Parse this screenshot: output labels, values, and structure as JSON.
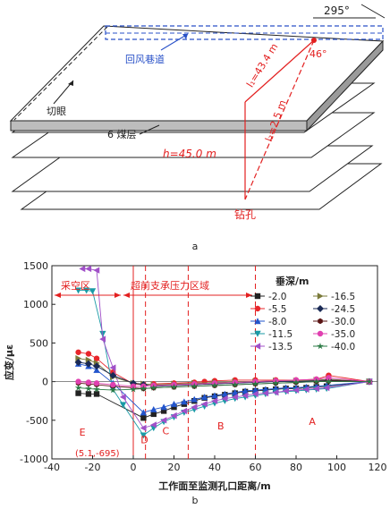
{
  "diagram": {
    "label": "a",
    "angle_top": "295°",
    "roadway_label": "回风巷道",
    "cut_label": "切眼",
    "seam_label": "6 煤层",
    "l1_label": "l₁=43.4 m",
    "l2_label": "l₂=2.5 m",
    "angle_46": "46°",
    "h_label": "h=45.0 m",
    "drill_label": "钻孔"
  },
  "chart_data": {
    "type": "scatter",
    "label": "b",
    "xlabel": "工作面至监测孔口距离/m",
    "ylabel": "应变/με",
    "xlim": [
      -40,
      120
    ],
    "ylim": [
      -1000,
      1500
    ],
    "xticks": [
      -40,
      -20,
      0,
      20,
      40,
      60,
      80,
      100,
      120
    ],
    "yticks": [
      -1000,
      -500,
      0,
      500,
      1000,
      1500
    ],
    "legend_title": "垂深/m",
    "zones": {
      "goaf": "采空区",
      "support": "超前支承压力区域",
      "letters": [
        "E",
        "D",
        "C",
        "B",
        "A"
      ]
    },
    "zone_boundaries": [
      0,
      6,
      27,
      60
    ],
    "annotation": "(5.1,-695)",
    "annotation_point": [
      5.1,
      -695
    ],
    "series": [
      {
        "name": "-2.0",
        "color": "#222222",
        "marker": "square",
        "x": [
          -27,
          -22,
          -18,
          5,
          10,
          15,
          20,
          25,
          30,
          35,
          40,
          45,
          50,
          55,
          60,
          65,
          70,
          75,
          80,
          85,
          90,
          95,
          116
        ],
        "y": [
          -150,
          -160,
          -160,
          -470,
          -420,
          -380,
          -330,
          -290,
          -250,
          -210,
          -190,
          -170,
          -150,
          -130,
          -120,
          -110,
          -100,
          -90,
          -90,
          -80,
          -70,
          -60,
          0
        ]
      },
      {
        "name": "-5.5",
        "color": "#e8262b",
        "marker": "circle",
        "x": [
          -27,
          -22,
          -18,
          -10,
          0,
          5,
          10,
          20,
          30,
          35,
          40,
          50,
          60,
          70,
          80,
          90,
          96,
          116
        ],
        "y": [
          380,
          360,
          300,
          120,
          -30,
          -40,
          -30,
          -20,
          -10,
          0,
          10,
          20,
          20,
          20,
          20,
          30,
          80,
          0
        ]
      },
      {
        "name": "-8.0",
        "color": "#2255cc",
        "marker": "triangle-up",
        "x": [
          -27,
          -22,
          -18,
          -10,
          5,
          10,
          15,
          20,
          25,
          30,
          35,
          40,
          45,
          50,
          55,
          60,
          65,
          70,
          75,
          80,
          85,
          90,
          95,
          116
        ],
        "y": [
          230,
          200,
          150,
          -20,
          -400,
          -360,
          -330,
          -290,
          -260,
          -230,
          -200,
          -180,
          -160,
          -140,
          -120,
          -110,
          -100,
          -90,
          -80,
          -80,
          -70,
          -60,
          -50,
          0
        ]
      },
      {
        "name": "-11.5",
        "color": "#1a9aa6",
        "marker": "triangle-down",
        "x": [
          -27,
          -23,
          -20,
          -15,
          -10,
          -5,
          5,
          10,
          15,
          20,
          25,
          30,
          35,
          40,
          45,
          50,
          55,
          60,
          65,
          70,
          75,
          80,
          85,
          90,
          95,
          116
        ],
        "y": [
          1180,
          1180,
          1170,
          620,
          -100,
          -300,
          -695,
          -600,
          -520,
          -460,
          -400,
          -360,
          -320,
          -280,
          -250,
          -220,
          -200,
          -180,
          -160,
          -140,
          -130,
          -120,
          -110,
          -100,
          -90,
          0
        ]
      },
      {
        "name": "-13.5",
        "color": "#a050c8",
        "marker": "triangle-left",
        "x": [
          -25,
          -22,
          -18,
          -15,
          -10,
          -5,
          5,
          10,
          15,
          20,
          25,
          30,
          35,
          40,
          45,
          50,
          55,
          60,
          65,
          70,
          75,
          80,
          85,
          90,
          95,
          116
        ],
        "y": [
          1460,
          1460,
          1440,
          550,
          180,
          -200,
          -600,
          -560,
          -500,
          -440,
          -380,
          -330,
          -290,
          -250,
          -220,
          -200,
          -180,
          -160,
          -150,
          -140,
          -120,
          -110,
          -100,
          -90,
          -80,
          0
        ]
      },
      {
        "name": "-16.5",
        "color": "#7a7a3a",
        "marker": "triangle-right",
        "x": [
          -27,
          -22,
          -18,
          -10,
          0,
          5,
          10,
          20,
          30,
          40,
          50,
          60,
          70,
          80,
          90,
          96,
          116
        ],
        "y": [
          300,
          280,
          240,
          60,
          -20,
          -30,
          -40,
          -30,
          -20,
          -10,
          0,
          0,
          10,
          10,
          20,
          30,
          0
        ]
      },
      {
        "name": "-24.5",
        "color": "#1a2a55",
        "marker": "diamond",
        "x": [
          -27,
          -22,
          -18,
          -10,
          0,
          5,
          10,
          20,
          30,
          40,
          50,
          60,
          70,
          80,
          90,
          96,
          116
        ],
        "y": [
          250,
          230,
          200,
          80,
          -20,
          -40,
          -60,
          -50,
          -40,
          -30,
          -20,
          -10,
          0,
          0,
          10,
          20,
          0
        ]
      },
      {
        "name": "-30.0",
        "color": "#5a1414",
        "marker": "hexagon",
        "x": [
          -27,
          -22,
          -18,
          -10,
          0,
          5,
          10,
          20,
          30,
          40,
          50,
          60,
          70,
          80,
          90,
          96,
          116
        ],
        "y": [
          -20,
          -30,
          -40,
          -60,
          -80,
          -90,
          -80,
          -70,
          -60,
          -50,
          -40,
          -30,
          -20,
          -10,
          0,
          10,
          0
        ]
      },
      {
        "name": "-35.0",
        "color": "#e040b0",
        "marker": "circle",
        "x": [
          -27,
          -22,
          -18,
          -10,
          0,
          5,
          10,
          20,
          30,
          40,
          50,
          60,
          70,
          80,
          90,
          96,
          116
        ],
        "y": [
          0,
          -10,
          -20,
          -40,
          -60,
          -60,
          -50,
          -40,
          -30,
          -20,
          -10,
          0,
          10,
          20,
          30,
          50,
          0
        ]
      },
      {
        "name": "-40.0",
        "color": "#2a7a44",
        "marker": "star",
        "x": [
          -27,
          -22,
          -18,
          -10,
          0,
          5,
          10,
          20,
          30,
          40,
          50,
          60,
          70,
          80,
          90,
          96,
          116
        ],
        "y": [
          -80,
          -90,
          -100,
          -110,
          -100,
          -90,
          -80,
          -70,
          -60,
          -50,
          -40,
          -30,
          -20,
          -10,
          0,
          0,
          0
        ]
      }
    ]
  }
}
